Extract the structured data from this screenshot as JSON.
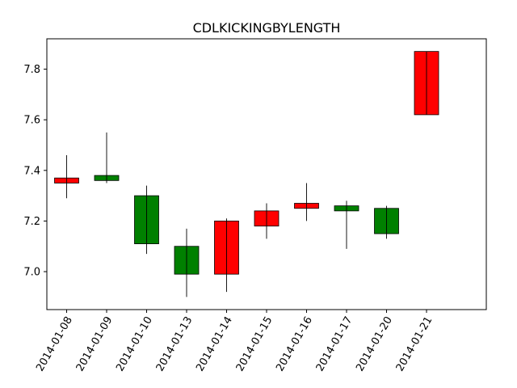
{
  "chart_data": {
    "type": "candlestick",
    "title": "CDLKICKINGBYLENGTH",
    "xlabel": "",
    "ylabel": "",
    "ylim": [
      6.85,
      7.92
    ],
    "yticks": [
      "7.0",
      "7.2",
      "7.4",
      "7.6",
      "7.8"
    ],
    "grid": false,
    "up_color": "#008000",
    "down_color": "#ff0000",
    "categories": [
      "2014-01-08",
      "2014-01-09",
      "2014-01-10",
      "2014-01-13",
      "2014-01-14",
      "2014-01-15",
      "2014-01-16",
      "2014-01-17",
      "2014-01-20",
      "2014-01-21"
    ],
    "candles": [
      {
        "date": "2014-01-08",
        "open": 7.37,
        "high": 7.46,
        "low": 7.29,
        "close": 7.35,
        "color": "#ff0000"
      },
      {
        "date": "2014-01-09",
        "open": 7.36,
        "high": 7.55,
        "low": 7.35,
        "close": 7.38,
        "color": "#008000"
      },
      {
        "date": "2014-01-10",
        "open": 7.11,
        "high": 7.34,
        "low": 7.07,
        "close": 7.3,
        "color": "#008000"
      },
      {
        "date": "2014-01-13",
        "open": 6.99,
        "high": 7.17,
        "low": 6.9,
        "close": 7.1,
        "color": "#008000"
      },
      {
        "date": "2014-01-14",
        "open": 7.2,
        "high": 7.21,
        "low": 6.92,
        "close": 6.99,
        "color": "#ff0000"
      },
      {
        "date": "2014-01-15",
        "open": 7.24,
        "high": 7.27,
        "low": 7.13,
        "close": 7.18,
        "color": "#ff0000"
      },
      {
        "date": "2014-01-16",
        "open": 7.27,
        "high": 7.35,
        "low": 7.2,
        "close": 7.25,
        "color": "#ff0000"
      },
      {
        "date": "2014-01-17",
        "open": 7.24,
        "high": 7.28,
        "low": 7.09,
        "close": 7.26,
        "color": "#008000"
      },
      {
        "date": "2014-01-20",
        "open": 7.15,
        "high": 7.26,
        "low": 7.13,
        "close": 7.25,
        "color": "#008000"
      },
      {
        "date": "2014-01-21",
        "open": 7.87,
        "high": 7.87,
        "low": 7.62,
        "close": 7.62,
        "color": "#ff0000"
      }
    ]
  }
}
